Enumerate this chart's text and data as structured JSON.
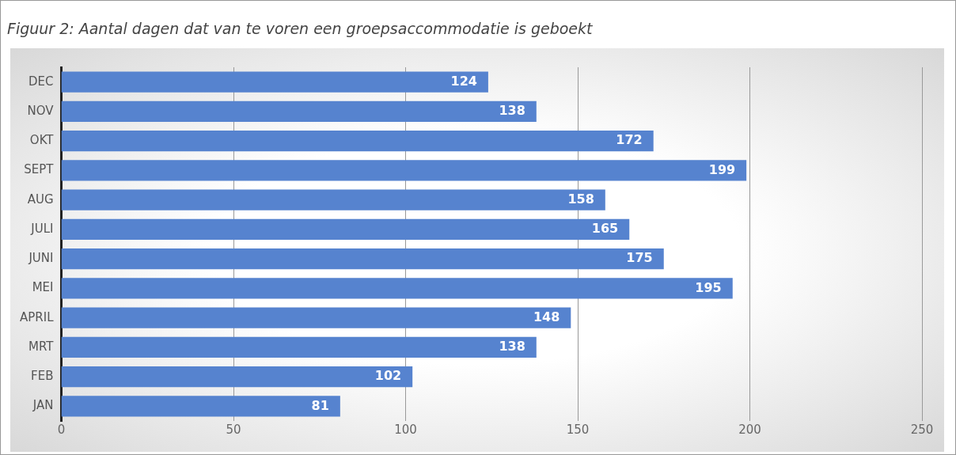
{
  "chart_data": {
    "type": "bar",
    "orientation": "horizontal",
    "title": "Figuur 2: Aantal dagen dat van te voren een groepsaccommodatie is geboekt",
    "categories": [
      "DEC",
      "NOV",
      "OKT",
      "SEPT",
      "AUG",
      "JULI",
      "JUNI",
      "MEI",
      "APRIL",
      "MRT",
      "FEB",
      "JAN"
    ],
    "values": [
      124,
      138,
      172,
      199,
      158,
      165,
      175,
      195,
      148,
      138,
      102,
      81
    ],
    "color": "#5683cf",
    "xlim": [
      0,
      250
    ],
    "xticks": [
      0,
      50,
      100,
      150,
      200,
      250
    ],
    "grid": "x",
    "data_labels": true,
    "legend": false
  }
}
